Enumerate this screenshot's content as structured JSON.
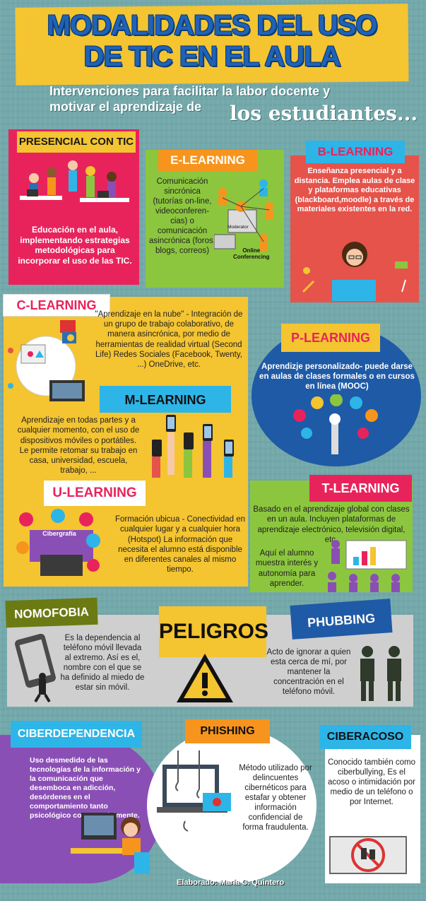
{
  "title": {
    "line1": "MODALIDADES DEL USO",
    "line2": "DE TIC EN EL AULA"
  },
  "subtitle": {
    "line1": "Intervenciones para facilitar la labor docente y",
    "line2": "motivar el aprendizaje de",
    "highlight": "los estudiantes..."
  },
  "presencial": {
    "label": "PRESENCIAL CON TIC",
    "text": "Educación en el aula, implementando estrategias metodológicas para incorporar el uso de las TIC."
  },
  "elearning": {
    "label": "E-LEARNING",
    "text": "Comunicación sincrónica (tutorías on-line, videoconferen-cias) o comunicación asincrónica (foros, blogs, correos)",
    "moderator": "Moderator",
    "online": "Online",
    "conferencing": "Conferencing"
  },
  "blearning": {
    "label": "B-LEARNING",
    "text": "Enseñanza presencial y a distancia. Emplea aulas de clase y plataformas educativas (blackboard,moodle) a través de materiales existentes en la red."
  },
  "clearning": {
    "label": "C-LEARNING",
    "text": "\"Aprendizaje en la nube\" - Integración de un grupo de trabajo colaborativo, de manera asincrónica, por medio de herramientas de realidad virtual (Second Life) Redes Sociales (Facebook, Twenty, ...) OneDrive, etc."
  },
  "plearning": {
    "label": "P-LEARNING",
    "text": "Aprendizje personalizado- puede darse en aulas de clases formales o en cursos en línea (MOOC)"
  },
  "mlearning": {
    "label": "M-LEARNING",
    "text": "Aprendizaje en todas partes y a cualquier momento, con el uso de dispositivos móviles o portátiles. Le permite retomar su trabajo en casa, universidad, escuela, trabajo, ..."
  },
  "ulearning": {
    "label": "U-LEARNING",
    "text": "Formación ubicua - Conectividad en cualquier lugar y a cualquier hora (Hotspot) La información que necesita el alumno está disponible en diferentes canales al mismo tiempo.",
    "cyber": "Cibergrafía"
  },
  "tlearning": {
    "label": "T-LEARNING",
    "text": "Basado en el aprendizaje global con clases en un aula. Incluyen plataformas de aprendizaje electrónico, televisión digital, etc.",
    "text2": "Aquí el alumno muestra interés y autonomía para aprender."
  },
  "peligros": {
    "label": "PELIGROS"
  },
  "nomofobia": {
    "label": "NOMOFOBIA",
    "text": "Es la dependencia al teléfono móvil llevada al extremo. Así es el, nombre con el que se ha definido al miedo de estar sin móvil."
  },
  "phubbing": {
    "label": "PHUBBING",
    "text": "Acto de ignorar a quien esta cerca de mí, por mantener la concentración en el teléfono móvil."
  },
  "ciberdependencia": {
    "label": "CIBERDEPENDENCIA",
    "text": "Uso desmedido de las tecnologías de la información y la comunicación que desemboca en adicción, desórdenes en el comportamiento tanto psicológico como socialmente."
  },
  "phishing": {
    "label": "PHISHING",
    "text": "Método utilizado por delincuentes cibernéticos para estafar y obtener información confidencial de forma fraudulenta."
  },
  "ciberacoso": {
    "label": "CIBERACOSO",
    "text": "Conocido también como ciberbullying, Es el acoso o intimidación por medio de un teléfono o por Internet."
  },
  "footer": {
    "credit": "Elaborado: María C. Quintero"
  },
  "colors": {
    "yellow": "#f4c431",
    "pink": "#e8235c",
    "cyan": "#2db5e8",
    "green": "#8cc63f",
    "orange": "#f7941d",
    "coral": "#e5534b",
    "purple": "#8a4fb5",
    "blue": "#1f5aa6",
    "olive": "#6b7a12"
  }
}
